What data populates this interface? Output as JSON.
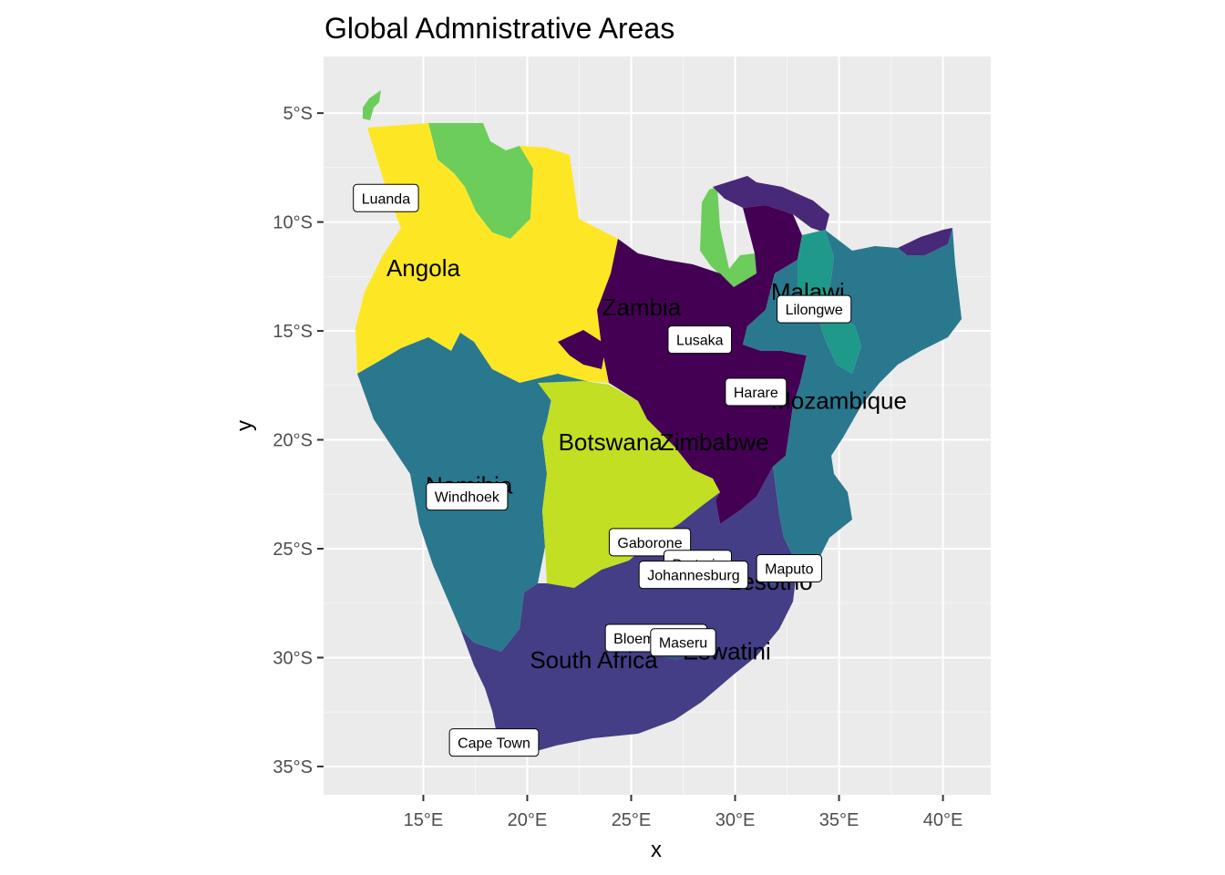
{
  "title": "Global Admnistrative Areas",
  "xlabel": "x",
  "ylabel": "y",
  "colors": {
    "panel": "#ebebeb",
    "Angola": "#fde725",
    "Botswana": "#c2df23",
    "DRC": "#6ccd5a",
    "Tanzania": "#1fa187",
    "Namibia": "#2a788e",
    "Mozambique": "#2a788e",
    "Malawi": "#1f9a8a",
    "SouthAfrica": "#433e85",
    "Lesotho": "#3b528b",
    "Eswatini": "#3b528b",
    "Zambia": "#440154",
    "Zimbabwe": "#440154",
    "Tanzania_north": "#482878"
  },
  "chart_data": {
    "type": "map",
    "title": "Global Admnistrative Areas",
    "xlabel": "x",
    "ylabel": "y",
    "xlim": [
      10.2,
      42.3
    ],
    "ylim": [
      -36.3,
      -2.4
    ],
    "x_ticks": [
      {
        "value": 15,
        "label": "15°E"
      },
      {
        "value": 20,
        "label": "20°E"
      },
      {
        "value": 25,
        "label": "25°E"
      },
      {
        "value": 30,
        "label": "30°E"
      },
      {
        "value": 35,
        "label": "35°E"
      },
      {
        "value": 40,
        "label": "40°E"
      }
    ],
    "y_ticks": [
      {
        "value": -5,
        "label": "5°S"
      },
      {
        "value": -10,
        "label": "10°S"
      },
      {
        "value": -15,
        "label": "15°S"
      },
      {
        "value": -20,
        "label": "20°S"
      },
      {
        "value": -25,
        "label": "25°S"
      },
      {
        "value": -30,
        "label": "30°S"
      },
      {
        "value": -35,
        "label": "35°S"
      }
    ],
    "countries": [
      {
        "name": "Angola",
        "lon": 15.0,
        "lat": -12.1
      },
      {
        "name": "Zambia",
        "lon": 25.5,
        "lat": -13.9
      },
      {
        "name": "Malawi",
        "lon": 33.5,
        "lat": -13.2
      },
      {
        "name": "Mozambique",
        "lon": 35.0,
        "lat": -18.2
      },
      {
        "name": "Botswana",
        "lon": 24.0,
        "lat": -20.1
      },
      {
        "name": "Zimbabwe",
        "lon": 29.0,
        "lat": -20.1
      },
      {
        "name": "Namibia",
        "lon": 17.2,
        "lat": -22.1
      },
      {
        "name": "South Africa",
        "lon": 23.2,
        "lat": -30.1
      },
      {
        "name": "Eswatini",
        "lon": 29.6,
        "lat": -29.7
      },
      {
        "name": "Lesotho",
        "lon": 31.7,
        "lat": -26.5
      }
    ],
    "cities": [
      {
        "name": "Luanda",
        "lon": 13.2,
        "lat": -8.9
      },
      {
        "name": "Lilongwe",
        "lon": 33.8,
        "lat": -14.0
      },
      {
        "name": "Lusaka",
        "lon": 28.3,
        "lat": -15.4
      },
      {
        "name": "Harare",
        "lon": 31.0,
        "lat": -17.8
      },
      {
        "name": "Windhoek",
        "lon": 17.1,
        "lat": -22.6
      },
      {
        "name": "Gaborone",
        "lon": 25.9,
        "lat": -24.7
      },
      {
        "name": "Pretoria",
        "lon": 28.2,
        "lat": -25.7
      },
      {
        "name": "Johannesburg",
        "lon": 28.0,
        "lat": -26.2
      },
      {
        "name": "Maputo",
        "lon": 32.6,
        "lat": -25.9
      },
      {
        "name": "Bloemfontein",
        "lon": 26.2,
        "lat": -29.1
      },
      {
        "name": "Maseru",
        "lon": 27.5,
        "lat": -29.3
      },
      {
        "name": "Cape Town",
        "lon": 18.4,
        "lat": -33.9
      }
    ]
  }
}
